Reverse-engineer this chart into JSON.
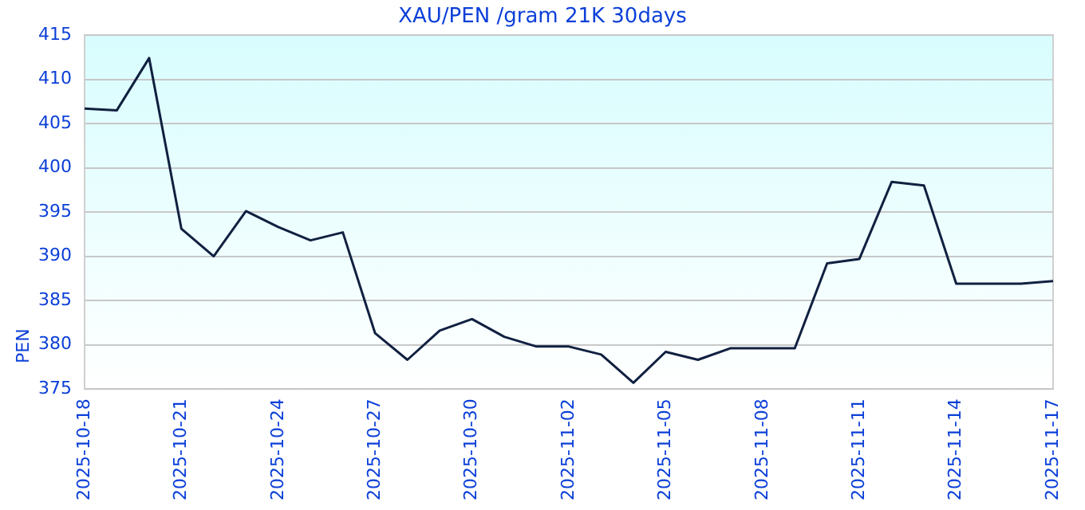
{
  "chart_data": {
    "type": "line",
    "title": "XAU/PEN /gram 21K 30days",
    "ylabel": "PEN",
    "x": [
      "2025-10-18",
      "2025-10-19",
      "2025-10-20",
      "2025-10-21",
      "2025-10-22",
      "2025-10-23",
      "2025-10-24",
      "2025-10-25",
      "2025-10-26",
      "2025-10-27",
      "2025-10-28",
      "2025-10-29",
      "2025-10-30",
      "2025-10-31",
      "2025-11-01",
      "2025-11-02",
      "2025-11-03",
      "2025-11-04",
      "2025-11-05",
      "2025-11-06",
      "2025-11-07",
      "2025-11-08",
      "2025-11-09",
      "2025-11-10",
      "2025-11-11",
      "2025-11-12",
      "2025-11-13",
      "2025-11-14",
      "2025-11-15",
      "2025-11-16",
      "2025-11-17"
    ],
    "series": [
      {
        "color": "#102040",
        "values": [
          406.7,
          406.5,
          412.4,
          393.1,
          390.0,
          395.1,
          393.3,
          391.8,
          392.7,
          381.3,
          378.3,
          381.6,
          382.9,
          380.9,
          379.8,
          379.8,
          378.9,
          375.7,
          379.2,
          378.3,
          379.6,
          379.6,
          379.6,
          389.2,
          389.7,
          398.4,
          398.0,
          386.9,
          386.9,
          386.9,
          387.2
        ]
      }
    ],
    "xlim": [
      "2025-10-18",
      "2025-11-17"
    ],
    "xticks": [
      "2025-10-18",
      "2025-10-21",
      "2025-10-24",
      "2025-10-27",
      "2025-10-30",
      "2025-11-02",
      "2025-11-05",
      "2025-11-08",
      "2025-11-11",
      "2025-11-14",
      "2025-11-17"
    ],
    "ylim": [
      375,
      415
    ],
    "yticks": [
      375,
      380,
      385,
      390,
      395,
      400,
      405,
      410,
      415
    ],
    "grid": "y",
    "legend": false,
    "marker": "none",
    "line_style": "solid"
  }
}
